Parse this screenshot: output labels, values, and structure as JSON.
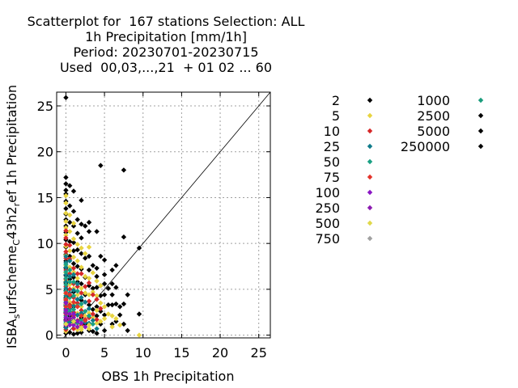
{
  "chart_data": {
    "type": "scatter",
    "title_lines": [
      "Scatterplot for  167 stations Selection: ALL",
      "1h Precipitation [mm/1h]",
      "Period: 20230701-20230715",
      "Used  00,03,...,21  + 01 02 ... 60"
    ],
    "xlabel": "OBS 1h Precipitation",
    "ylabel_parts": [
      "ISBA",
      "s",
      "urfscheme",
      "C",
      "43h2",
      "r",
      "ef 1h Precipitation"
    ],
    "xlim": [
      -1.2,
      26.5
    ],
    "ylim": [
      -0.3,
      26.5
    ],
    "xticks": [
      0,
      5,
      10,
      15,
      20,
      25
    ],
    "yticks": [
      0,
      5,
      10,
      15,
      20,
      25
    ],
    "grid": true,
    "legend_position": "right",
    "diagonal_line": true,
    "series": [
      {
        "name": "2",
        "color": "#000000",
        "points": [
          [
            0,
            25.9
          ],
          [
            0,
            17.2
          ],
          [
            0,
            16.5
          ],
          [
            0,
            15.8
          ],
          [
            0,
            15.4
          ],
          [
            0,
            14.6
          ],
          [
            0,
            13.8
          ],
          [
            0,
            13.2
          ],
          [
            0,
            12.6
          ],
          [
            0,
            11.9
          ],
          [
            0,
            11.2
          ],
          [
            0,
            10.4
          ],
          [
            0,
            9.6
          ],
          [
            0,
            8.8
          ],
          [
            0,
            8.1
          ],
          [
            0,
            7.3
          ],
          [
            0,
            6.5
          ],
          [
            0,
            5.7
          ],
          [
            0,
            4.9
          ],
          [
            0,
            4.1
          ],
          [
            0,
            3.3
          ],
          [
            0,
            2.5
          ],
          [
            0,
            1.7
          ],
          [
            0,
            0.9
          ],
          [
            0,
            0.2
          ],
          [
            0.5,
            16.3
          ],
          [
            0.5,
            14.1
          ],
          [
            0.5,
            12.3
          ],
          [
            0.5,
            10.2
          ],
          [
            0.5,
            8.6
          ],
          [
            0.5,
            6.1
          ],
          [
            0.5,
            4.2
          ],
          [
            0.5,
            2.1
          ],
          [
            0.5,
            0.3
          ],
          [
            1,
            15.7
          ],
          [
            1,
            13.5
          ],
          [
            1,
            11.9
          ],
          [
            1,
            10.1
          ],
          [
            1,
            9.2
          ],
          [
            1,
            7.8
          ],
          [
            1,
            6.3
          ],
          [
            1,
            4.7
          ],
          [
            1,
            3.1
          ],
          [
            1,
            1.4
          ],
          [
            1,
            0.1
          ],
          [
            1.5,
            12.6
          ],
          [
            1.5,
            11.1
          ],
          [
            1.5,
            9.3
          ],
          [
            1.5,
            7.5
          ],
          [
            1.5,
            5.8
          ],
          [
            1.5,
            3.9
          ],
          [
            1.5,
            2.2
          ],
          [
            1.5,
            0.2
          ],
          [
            2,
            14.7
          ],
          [
            2,
            12.1
          ],
          [
            2,
            10.6
          ],
          [
            2,
            8.9
          ],
          [
            2,
            7.2
          ],
          [
            2,
            5.6
          ],
          [
            2,
            3.8
          ],
          [
            2,
            1.9
          ],
          [
            2,
            0.3
          ],
          [
            2.5,
            11.9
          ],
          [
            2.5,
            8.4
          ],
          [
            2.5,
            6.3
          ],
          [
            2.5,
            4.4
          ],
          [
            2.5,
            1.2
          ],
          [
            3,
            12.3
          ],
          [
            3,
            11.3
          ],
          [
            3,
            8.6
          ],
          [
            3,
            7.1
          ],
          [
            3,
            5.4
          ],
          [
            3,
            3.3
          ],
          [
            3,
            0.5
          ],
          [
            3.5,
            7.6
          ],
          [
            3.5,
            5.1
          ],
          [
            3.5,
            2.8
          ],
          [
            3.5,
            0.4
          ],
          [
            4,
            11.3
          ],
          [
            4,
            7.3
          ],
          [
            4,
            6.4
          ],
          [
            4,
            5.2
          ],
          [
            4,
            3.1
          ],
          [
            4,
            2.1
          ],
          [
            4,
            0.2
          ],
          [
            4.5,
            18.5
          ],
          [
            4.5,
            8.6
          ],
          [
            4.5,
            5.4
          ],
          [
            4.5,
            4.3
          ],
          [
            4.5,
            2.6
          ],
          [
            4.5,
            1.2
          ],
          [
            5,
            8.2
          ],
          [
            5,
            6.6
          ],
          [
            5,
            5.6
          ],
          [
            5,
            4.4
          ],
          [
            5,
            2.2
          ],
          [
            5,
            0.5
          ],
          [
            5.5,
            5.1
          ],
          [
            5.5,
            3.3
          ],
          [
            6,
            7.1
          ],
          [
            6,
            5.6
          ],
          [
            6,
            4.4
          ],
          [
            6,
            3.3
          ],
          [
            6,
            1.2
          ],
          [
            6.5,
            7.6
          ],
          [
            6.5,
            5.2
          ],
          [
            6.5,
            3.4
          ],
          [
            6.5,
            1.5
          ],
          [
            7,
            3.1
          ],
          [
            7,
            2.2
          ],
          [
            7.5,
            18
          ],
          [
            7.5,
            10.7
          ],
          [
            7.5,
            3.4
          ],
          [
            7.5,
            1.2
          ],
          [
            8,
            4.4
          ],
          [
            8,
            0.5
          ],
          [
            9.5,
            9.5
          ],
          [
            9.5,
            2.3
          ]
        ]
      },
      {
        "name": "5",
        "color": "#e8d440",
        "points": [
          [
            0,
            15.2
          ],
          [
            0,
            14.4
          ],
          [
            0,
            13.3
          ],
          [
            0,
            12.4
          ],
          [
            0,
            11.7
          ],
          [
            0,
            10.9
          ],
          [
            0,
            9.7
          ],
          [
            0,
            8.7
          ],
          [
            0,
            7.6
          ],
          [
            0,
            6.8
          ],
          [
            0,
            5.9
          ],
          [
            0,
            4.5
          ],
          [
            0,
            3.4
          ],
          [
            0,
            2.4
          ],
          [
            0,
            1.1
          ],
          [
            0,
            0.4
          ],
          [
            0.5,
            13.1
          ],
          [
            0.5,
            11.3
          ],
          [
            0.5,
            9.2
          ],
          [
            0.5,
            7.4
          ],
          [
            0.5,
            5.5
          ],
          [
            0.5,
            3.6
          ],
          [
            0.5,
            1.2
          ],
          [
            1,
            12.2
          ],
          [
            1,
            10.5
          ],
          [
            1,
            8.5
          ],
          [
            1,
            6.9
          ],
          [
            1,
            5.1
          ],
          [
            1,
            3.4
          ],
          [
            1,
            1.2
          ],
          [
            1.5,
            9.9
          ],
          [
            1.5,
            8.1
          ],
          [
            1.5,
            6.2
          ],
          [
            1.5,
            4.4
          ],
          [
            1.5,
            2.4
          ],
          [
            1.5,
            0.6
          ],
          [
            2,
            9.5
          ],
          [
            2,
            7.4
          ],
          [
            2,
            5.1
          ],
          [
            2,
            3.1
          ],
          [
            2,
            0.6
          ],
          [
            2.5,
            8.9
          ],
          [
            2.5,
            6.4
          ],
          [
            2.5,
            4.6
          ],
          [
            2.5,
            2.1
          ],
          [
            3,
            9.6
          ],
          [
            3,
            6.2
          ],
          [
            3,
            4.4
          ],
          [
            3,
            2.4
          ],
          [
            3,
            0.7
          ],
          [
            3.5,
            6.8
          ],
          [
            3.5,
            4.7
          ],
          [
            3.5,
            1.9
          ],
          [
            4,
            5.9
          ],
          [
            4,
            4.3
          ],
          [
            4,
            2.7
          ],
          [
            4,
            1.3
          ],
          [
            4.5,
            5.4
          ],
          [
            4.5,
            3.5
          ],
          [
            4.5,
            1.5
          ],
          [
            5,
            3.1
          ],
          [
            5,
            1.8
          ],
          [
            5.5,
            2.3
          ],
          [
            6,
            2.1
          ],
          [
            6,
            0.9
          ],
          [
            6.5,
            1.8
          ],
          [
            7,
            1.1
          ],
          [
            9.5,
            0
          ]
        ]
      },
      {
        "name": "10",
        "color": "#d62728",
        "points": [
          [
            0,
            11.4
          ],
          [
            0,
            10.6
          ],
          [
            0,
            9.9
          ],
          [
            0,
            9.1
          ],
          [
            0,
            8.4
          ],
          [
            0,
            7.1
          ],
          [
            0,
            6.1
          ],
          [
            0,
            5.3
          ],
          [
            0,
            3.8
          ],
          [
            0,
            2.8
          ],
          [
            0,
            1.9
          ],
          [
            0,
            0.6
          ],
          [
            0.5,
            9.8
          ],
          [
            0.5,
            8.3
          ],
          [
            0.5,
            6.7
          ],
          [
            0.5,
            5
          ],
          [
            0.5,
            3.3
          ],
          [
            0.5,
            1.6
          ],
          [
            1,
            7.3
          ],
          [
            1,
            5.6
          ],
          [
            1,
            4.1
          ],
          [
            1,
            2.5
          ],
          [
            1,
            0.7
          ],
          [
            1.5,
            6.7
          ],
          [
            1.5,
            5.3
          ],
          [
            1.5,
            3.5
          ],
          [
            1.5,
            1.6
          ],
          [
            2,
            6.7
          ],
          [
            2,
            4.6
          ],
          [
            2,
            2.7
          ],
          [
            2,
            1.1
          ],
          [
            2.5,
            5.3
          ],
          [
            2.5,
            3.6
          ],
          [
            2.5,
            1.7
          ],
          [
            3,
            5.7
          ],
          [
            3,
            3.7
          ],
          [
            3,
            1.9
          ],
          [
            3.5,
            4.4
          ],
          [
            3.5,
            2.3
          ],
          [
            4,
            3.9
          ],
          [
            4,
            1.7
          ],
          [
            4.5,
            2.9
          ]
        ]
      },
      {
        "name": "25",
        "color": "#0f7b8a",
        "points": [
          [
            0,
            8.6
          ],
          [
            0,
            7.9
          ],
          [
            0,
            7.4
          ],
          [
            0,
            6.6
          ],
          [
            0,
            5.8
          ],
          [
            0,
            5.1
          ],
          [
            0,
            4.3
          ],
          [
            0,
            3.6
          ],
          [
            0,
            2.9
          ],
          [
            0,
            2.1
          ],
          [
            0,
            1.3
          ],
          [
            0,
            0.8
          ],
          [
            0.5,
            8.1
          ],
          [
            0.5,
            6.4
          ],
          [
            0.5,
            4.6
          ],
          [
            0.5,
            2.9
          ],
          [
            0.5,
            1.4
          ],
          [
            1,
            6.6
          ],
          [
            1,
            4.9
          ],
          [
            1,
            3.2
          ],
          [
            1,
            1.6
          ],
          [
            1.5,
            5.6
          ],
          [
            1.5,
            3.9
          ],
          [
            1.5,
            2.2
          ],
          [
            2,
            4.1
          ],
          [
            2,
            2.4
          ],
          [
            2.5,
            3.6
          ],
          [
            2.5,
            1.4
          ],
          [
            3,
            2.9
          ],
          [
            3,
            1.3
          ],
          [
            3.5,
            1.6
          ],
          [
            4,
            0.7
          ]
        ]
      },
      {
        "name": "50",
        "color": "#1aa084",
        "points": [
          [
            0,
            7.7
          ],
          [
            0,
            6.9
          ],
          [
            0,
            6.2
          ],
          [
            0,
            5.5
          ],
          [
            0,
            4.8
          ],
          [
            0,
            4
          ],
          [
            0,
            3.2
          ],
          [
            0,
            2.6
          ],
          [
            0,
            1.5
          ],
          [
            0.5,
            7.1
          ],
          [
            0.5,
            5.8
          ],
          [
            0.5,
            4.1
          ],
          [
            0.5,
            2.6
          ],
          [
            1,
            5.8
          ],
          [
            1,
            4.3
          ],
          [
            1,
            2.8
          ],
          [
            1.5,
            4.8
          ],
          [
            1.5,
            3.2
          ],
          [
            1.5,
            1.3
          ],
          [
            2,
            3.4
          ],
          [
            2,
            1.6
          ],
          [
            2.5,
            2.6
          ],
          [
            3,
            2.1
          ],
          [
            3.5,
            1.2
          ]
        ]
      },
      {
        "name": "75",
        "color": "#e4332a",
        "points": [
          [
            0,
            4.6
          ],
          [
            0,
            3.9
          ],
          [
            0,
            3.1
          ],
          [
            0,
            2.3
          ],
          [
            0.5,
            4.4
          ],
          [
            0.5,
            3.1
          ],
          [
            1,
            3.6
          ],
          [
            1,
            2.1
          ],
          [
            1.5,
            3.1
          ],
          [
            2,
            2.1
          ],
          [
            2.5,
            1.6
          ]
        ]
      },
      {
        "name": "100",
        "color": "#8a16c4",
        "points": [
          [
            0,
            3.5
          ],
          [
            0,
            2.7
          ],
          [
            0,
            1.9
          ],
          [
            0,
            1.1
          ],
          [
            0.5,
            2.3
          ],
          [
            0.5,
            1.1
          ],
          [
            1,
            2.3
          ],
          [
            1,
            1.1
          ],
          [
            1.5,
            1.5
          ],
          [
            2,
            1.3
          ],
          [
            2.5,
            0.9
          ]
        ]
      },
      {
        "name": "250",
        "color": "#8c1ab0",
        "points": [
          [
            0,
            2.4
          ],
          [
            0,
            1.6
          ],
          [
            0.5,
            1.8
          ],
          [
            1,
            1.9
          ],
          [
            1.5,
            0.9
          ]
        ]
      },
      {
        "name": "500",
        "color": "#e0d84a",
        "points": [
          [
            0,
            1.2
          ],
          [
            1,
            1.5
          ],
          [
            2,
            0.8
          ],
          [
            3,
            1.1
          ]
        ]
      },
      {
        "name": "750",
        "color": "#a0a0a0",
        "points": []
      },
      {
        "name": "1000",
        "color": "#1a9c7c",
        "points": []
      },
      {
        "name": "2500",
        "color": "#000000",
        "points": []
      },
      {
        "name": "5000",
        "color": "#000000",
        "points": []
      },
      {
        "name": "250000",
        "color": "#000000",
        "points": []
      }
    ]
  }
}
